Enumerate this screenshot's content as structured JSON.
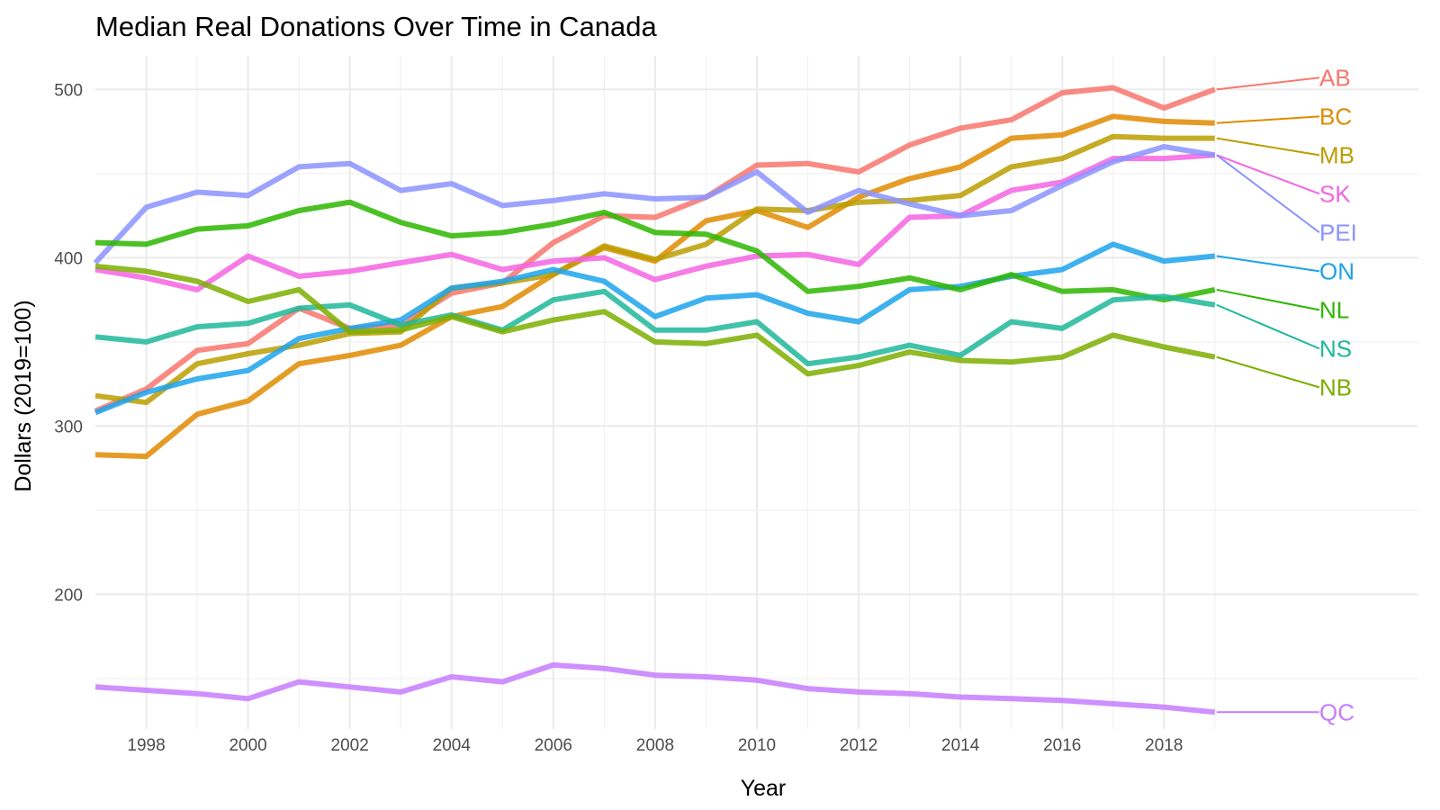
{
  "chart_data": {
    "type": "line",
    "title": "Median Real Donations Over Time in Canada",
    "xlabel": "Year",
    "ylabel": "Dollars (2019=100)",
    "xlim": [
      1997,
      2023
    ],
    "ylim": [
      120,
      520
    ],
    "x_ticks": [
      1998,
      2000,
      2002,
      2004,
      2006,
      2008,
      2010,
      2012,
      2014,
      2016,
      2018
    ],
    "x_tick_labels": [
      "1998",
      "2000",
      "2002",
      "2004",
      "2006",
      "2008",
      "2010",
      "2012",
      "2014",
      "2016",
      "2018"
    ],
    "y_ticks": [
      200,
      300,
      400,
      500
    ],
    "y_tick_labels": [
      "200",
      "300",
      "400",
      "500"
    ],
    "grid": true,
    "legend": "direct-labels-right",
    "x": [
      1997,
      1998,
      1999,
      2000,
      2001,
      2002,
      2003,
      2004,
      2005,
      2006,
      2007,
      2008,
      2009,
      2010,
      2011,
      2012,
      2013,
      2014,
      2015,
      2016,
      2017,
      2018,
      2019
    ],
    "series": [
      {
        "name": "AB",
        "color": "#F8766D",
        "label_y": 507,
        "values": [
          309,
          322,
          345,
          349,
          370,
          358,
          360,
          379,
          385,
          409,
          425,
          424,
          436,
          455,
          456,
          451,
          467,
          477,
          482,
          498,
          501,
          489,
          500
        ]
      },
      {
        "name": "BC",
        "color": "#E08B00",
        "label_y": 484,
        "values": [
          283,
          282,
          307,
          315,
          337,
          342,
          348,
          365,
          371,
          390,
          406,
          398,
          422,
          428,
          418,
          436,
          447,
          454,
          471,
          473,
          484,
          481,
          480
        ]
      },
      {
        "name": "MB",
        "color": "#BB9D00",
        "label_y": 461,
        "values": [
          318,
          314,
          337,
          343,
          348,
          355,
          356,
          382,
          385,
          390,
          407,
          399,
          408,
          429,
          428,
          433,
          434,
          437,
          454,
          459,
          472,
          471,
          471
        ]
      },
      {
        "name": "SK",
        "color": "#F564E3",
        "label_y": 438,
        "values": [
          393,
          388,
          381,
          401,
          389,
          392,
          397,
          402,
          393,
          398,
          400,
          387,
          395,
          401,
          402,
          396,
          424,
          425,
          440,
          445,
          459,
          459,
          461
        ]
      },
      {
        "name": "PEI",
        "color": "#8B93FF",
        "label_y": 415,
        "values": [
          397,
          430,
          439,
          437,
          454,
          456,
          440,
          444,
          431,
          434,
          438,
          435,
          436,
          451,
          427,
          440,
          432,
          425,
          428,
          443,
          457,
          466,
          461
        ]
      },
      {
        "name": "ON",
        "color": "#1CA3EC",
        "label_y": 392,
        "values": [
          308,
          320,
          328,
          333,
          352,
          358,
          363,
          382,
          386,
          393,
          386,
          365,
          376,
          378,
          367,
          362,
          381,
          383,
          389,
          393,
          408,
          398,
          401
        ]
      },
      {
        "name": "NL",
        "color": "#2DB600",
        "label_y": 369,
        "values": [
          409,
          408,
          417,
          419,
          428,
          433,
          421,
          413,
          415,
          420,
          427,
          415,
          414,
          404,
          380,
          383,
          388,
          381,
          390,
          380,
          381,
          375,
          381
        ]
      },
      {
        "name": "NS",
        "color": "#1FB79A",
        "label_y": 346,
        "values": [
          353,
          350,
          359,
          361,
          370,
          372,
          360,
          366,
          357,
          375,
          380,
          357,
          357,
          362,
          337,
          341,
          348,
          342,
          362,
          358,
          375,
          377,
          372
        ]
      },
      {
        "name": "NB",
        "color": "#7CAE00",
        "label_y": 323,
        "values": [
          395,
          392,
          386,
          374,
          381,
          356,
          357,
          365,
          356,
          363,
          368,
          350,
          349,
          354,
          331,
          336,
          344,
          339,
          338,
          341,
          354,
          347,
          341
        ]
      },
      {
        "name": "QC",
        "color": "#C77CFF",
        "label_y": 130,
        "values": [
          145,
          143,
          141,
          138,
          148,
          145,
          142,
          151,
          148,
          158,
          156,
          152,
          151,
          149,
          144,
          142,
          141,
          139,
          138,
          137,
          135,
          133,
          130
        ]
      }
    ]
  }
}
